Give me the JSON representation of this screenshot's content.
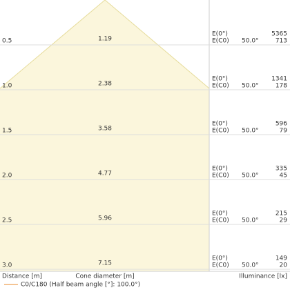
{
  "rows": [
    {
      "distance": "0.5",
      "diameter": "1.19",
      "e0_label": "E(0°)",
      "ec0_label": "E(C0)",
      "angle": "50.0°",
      "e0": "5365",
      "ec0": "713"
    },
    {
      "distance": "1.0",
      "diameter": "2.38",
      "e0_label": "E(0°)",
      "ec0_label": "E(C0)",
      "angle": "50.0°",
      "e0": "1341",
      "ec0": "178"
    },
    {
      "distance": "1.5",
      "diameter": "3.58",
      "e0_label": "E(0°)",
      "ec0_label": "E(C0)",
      "angle": "50.0°",
      "e0": "596",
      "ec0": "79"
    },
    {
      "distance": "2.0",
      "diameter": "4.77",
      "e0_label": "E(0°)",
      "ec0_label": "E(C0)",
      "angle": "50.0°",
      "e0": "335",
      "ec0": "45"
    },
    {
      "distance": "2.5",
      "diameter": "5.96",
      "e0_label": "E(0°)",
      "ec0_label": "E(C0)",
      "angle": "50.0°",
      "e0": "215",
      "ec0": "29"
    },
    {
      "distance": "3.0",
      "diameter": "7.15",
      "e0_label": "E(0°)",
      "ec0_label": "E(C0)",
      "angle": "50.0°",
      "e0": "149",
      "ec0": "20"
    }
  ],
  "footer": {
    "distance": "Distance [m]",
    "diameter": "Cone diameter [m]",
    "illuminance": "Illuminance [lx]"
  },
  "legend": "C0/C180 (Half beam angle [°]: 100.0°)"
}
